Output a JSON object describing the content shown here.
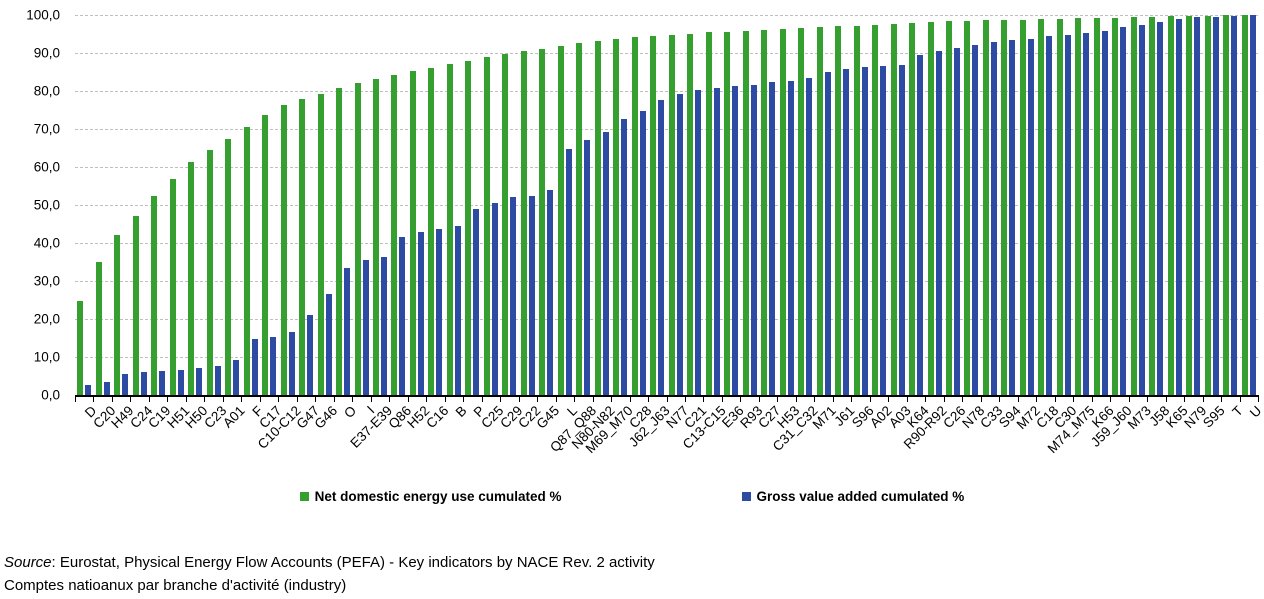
{
  "chart_data": {
    "type": "bar",
    "title": "",
    "xlabel": "",
    "ylabel": "",
    "ylim": [
      0,
      100
    ],
    "grid": "horizontal-dashed",
    "legend_position": "bottom-center",
    "yticks": [
      {
        "v": 0,
        "label": "0,0"
      },
      {
        "v": 10,
        "label": "10,0"
      },
      {
        "v": 20,
        "label": "20,0"
      },
      {
        "v": 30,
        "label": "30,0"
      },
      {
        "v": 40,
        "label": "40,0"
      },
      {
        "v": 50,
        "label": "50,0"
      },
      {
        "v": 60,
        "label": "60,0"
      },
      {
        "v": 70,
        "label": "70,0"
      },
      {
        "v": 80,
        "label": "80,0"
      },
      {
        "v": 90,
        "label": "90,0"
      },
      {
        "v": 100,
        "label": "100,0"
      }
    ],
    "categories": [
      "D",
      "C20",
      "H49",
      "C24",
      "C19",
      "H51",
      "H50",
      "C23",
      "A01",
      "F",
      "C17",
      "C10-C12",
      "G47",
      "G46",
      "O",
      "I",
      "E37-E39",
      "Q86",
      "H52",
      "C16",
      "B",
      "P",
      "C25",
      "C29",
      "C22",
      "G45",
      "L",
      "Q87_Q88",
      "N80-N82",
      "M69_M70",
      "C28",
      "J62_J63",
      "N77",
      "C21",
      "C13-C15",
      "E36",
      "R93",
      "C27",
      "H53",
      "C31_C32",
      "M71",
      "J61",
      "S96",
      "A02",
      "A03",
      "K64",
      "R90-R92",
      "C26",
      "N78",
      "C33",
      "S94",
      "M72",
      "C18",
      "C30",
      "M74_M75",
      "K66",
      "J59_J60",
      "M73",
      "J58",
      "K65",
      "N79",
      "S95",
      "T",
      "U"
    ],
    "series": [
      {
        "name": "Net domestic energy use cumulated %",
        "color": "#35A02F",
        "values": [
          24.8,
          35.0,
          42.0,
          47.2,
          52.3,
          56.8,
          61.2,
          64.4,
          67.5,
          70.5,
          73.6,
          76.4,
          78.0,
          79.3,
          80.9,
          82.1,
          83.2,
          84.2,
          85.3,
          86.1,
          87.0,
          88.0,
          89.0,
          89.7,
          90.4,
          91.0,
          91.9,
          92.6,
          93.2,
          93.7,
          94.1,
          94.4,
          94.8,
          95.1,
          95.4,
          95.6,
          95.8,
          96.1,
          96.3,
          96.5,
          96.8,
          97.0,
          97.2,
          97.5,
          97.6,
          97.8,
          98.1,
          98.3,
          98.4,
          98.6,
          98.7,
          98.8,
          98.9,
          99.0,
          99.1,
          99.2,
          99.3,
          99.4,
          99.6,
          99.7,
          99.8,
          99.8,
          99.9,
          100.0
        ]
      },
      {
        "name": "Gross value added cumulated %",
        "color": "#2D4BA3",
        "values": [
          2.6,
          3.4,
          5.4,
          6.0,
          6.3,
          6.6,
          7.1,
          7.7,
          9.3,
          14.8,
          15.3,
          16.6,
          21.0,
          26.5,
          33.3,
          35.5,
          36.4,
          41.5,
          43.0,
          43.7,
          44.4,
          49.0,
          50.4,
          52.1,
          52.5,
          54.0,
          64.7,
          67.0,
          69.2,
          72.7,
          74.8,
          77.7,
          79.1,
          80.3,
          80.9,
          81.2,
          81.7,
          82.4,
          82.7,
          83.5,
          84.9,
          85.8,
          86.3,
          86.6,
          86.9,
          89.5,
          90.4,
          91.2,
          92.2,
          92.8,
          93.3,
          93.8,
          94.4,
          94.8,
          95.3,
          95.7,
          96.8,
          97.5,
          98.1,
          99.0,
          99.4,
          99.6,
          99.8,
          100.0
        ]
      }
    ]
  },
  "footer": {
    "source_label": "Source",
    "line1_rest": ": Eurostat, Physical Energy Flow Accounts (PEFA) - Key indicators by NACE Rev. 2 activity",
    "line2": "Comptes natioanux par branche d'activité (industry)"
  }
}
